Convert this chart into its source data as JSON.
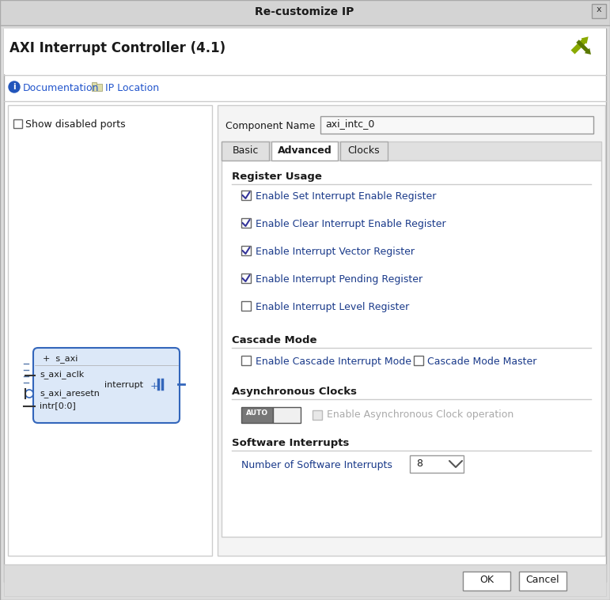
{
  "title": "Re-customize IP",
  "subtitle": "AXI Interrupt Controller (4.1)",
  "bg_outer": "#e0e0e0",
  "bg_white": "#ffffff",
  "bg_gray": "#f0f0f0",
  "bg_header": "#d8d8d8",
  "bg_tab_active": "#ffffff",
  "bg_tab_inactive": "#e0e0e0",
  "bg_content": "#f4f4f4",
  "border_color": "#aaaaaa",
  "dark_border": "#888888",
  "text_dark": "#1a1a1a",
  "text_blue": "#1a3a8a",
  "text_gray": "#aaaaaa",
  "component_name": "axi_intc_0",
  "tabs": [
    "Basic",
    "Advanced",
    "Clocks"
  ],
  "active_tab": "Advanced",
  "doc_links": [
    "Documentation",
    "IP Location"
  ],
  "checkboxes": [
    {
      "label": "Enable Set Interrupt Enable Register",
      "checked": true
    },
    {
      "label": "Enable Clear Interrupt Enable Register",
      "checked": true
    },
    {
      "label": "Enable Interrupt Vector Register",
      "checked": true
    },
    {
      "label": "Enable Interrupt Pending Register",
      "checked": true
    },
    {
      "label": "Enable Interrupt Level Register",
      "checked": false
    }
  ],
  "cascade_checkboxes": [
    {
      "label": "Enable Cascade Interrupt Mode",
      "checked": false
    },
    {
      "label": "Cascade Mode Master",
      "checked": false
    }
  ],
  "show_disabled_ports": false,
  "block_ports": [
    "s_axi",
    "s_axi_aclk",
    "s_axi_aresetn",
    "intr[0:0]"
  ],
  "block_output": "interrupt",
  "logo_color1": "#8aaa00",
  "logo_color2": "#5a7800"
}
